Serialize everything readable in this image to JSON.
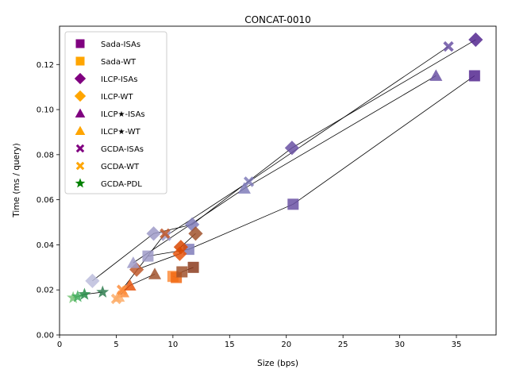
{
  "chart_data": {
    "type": "scatter",
    "title": "CONCAT-0010",
    "xlabel": "Size (bps)",
    "ylabel": "Time (ms / query)",
    "xlim": [
      0,
      38.5
    ],
    "ylim": [
      0,
      0.137
    ],
    "xticks": [
      "0",
      "5",
      "10",
      "15",
      "20",
      "25",
      "30",
      "35"
    ],
    "xtick_values": [
      0,
      5,
      10,
      15,
      20,
      25,
      30,
      35
    ],
    "yticks": [
      "0.00",
      "0.02",
      "0.04",
      "0.06",
      "0.08",
      "0.10",
      "0.12"
    ],
    "ytick_values": [
      0,
      0.02,
      0.04,
      0.06,
      0.08,
      0.1,
      0.12
    ],
    "legend_position": "upper-left",
    "colors": {
      "isa": "#800080",
      "wt": "#ffa500",
      "pdl": "#008000",
      "grid_frame": "#000000"
    },
    "legend": [
      {
        "label": "Sada-ISAs",
        "marker": "square",
        "color": "#800080"
      },
      {
        "label": "Sada-WT",
        "marker": "square",
        "color": "#ffa500"
      },
      {
        "label": "ILCP-ISAs",
        "marker": "diamond",
        "color": "#800080"
      },
      {
        "label": "ILCP-WT",
        "marker": "diamond",
        "color": "#ffa500"
      },
      {
        "label": "ILCP★-ISAs",
        "marker": "triangle",
        "color": "#800080"
      },
      {
        "label": "ILCP★-WT",
        "marker": "triangle",
        "color": "#ffa500"
      },
      {
        "label": "GCDA-ISAs",
        "marker": "x",
        "color": "#800080"
      },
      {
        "label": "GCDA-WT",
        "marker": "x",
        "color": "#ffa500"
      },
      {
        "label": "GCDA-PDL",
        "marker": "star",
        "color": "#008000"
      }
    ],
    "series": [
      {
        "name": "Sada-ISAs",
        "marker": "square",
        "line": true,
        "points": [
          {
            "x": 7.8,
            "y": 0.035,
            "color": "#9e9ac8"
          },
          {
            "x": 11.4,
            "y": 0.038,
            "color": "#807dba"
          },
          {
            "x": 20.6,
            "y": 0.058,
            "color": "#6a51a3"
          },
          {
            "x": 36.6,
            "y": 0.115,
            "color": "#54278f"
          }
        ]
      },
      {
        "name": "Sada-WT",
        "marker": "square",
        "line": true,
        "points": [
          {
            "x": 10.0,
            "y": 0.026,
            "color": "#fd8d3c"
          },
          {
            "x": 10.3,
            "y": 0.0255,
            "color": "#f16913"
          },
          {
            "x": 10.8,
            "y": 0.028,
            "color": "#a0522d"
          },
          {
            "x": 11.8,
            "y": 0.03,
            "color": "#8c3c1e"
          }
        ]
      },
      {
        "name": "ILCP-ISAs",
        "marker": "diamond",
        "line": true,
        "points": [
          {
            "x": 2.9,
            "y": 0.024,
            "color": "#bcbddc"
          },
          {
            "x": 8.3,
            "y": 0.045,
            "color": "#9e9ac8"
          },
          {
            "x": 11.7,
            "y": 0.049,
            "color": "#807dba"
          },
          {
            "x": 20.5,
            "y": 0.083,
            "color": "#6a51a3"
          },
          {
            "x": 36.7,
            "y": 0.131,
            "color": "#54278f"
          }
        ]
      },
      {
        "name": "ILCP-WT",
        "marker": "diamond",
        "line": true,
        "points": [
          {
            "x": 6.8,
            "y": 0.029,
            "color": "#c0582a"
          },
          {
            "x": 10.6,
            "y": 0.036,
            "color": "#e6550d"
          },
          {
            "x": 10.7,
            "y": 0.039,
            "color": "#d94801"
          },
          {
            "x": 12.0,
            "y": 0.045,
            "color": "#a0522d"
          }
        ]
      },
      {
        "name": "ILCP★-ISAs",
        "marker": "triangle",
        "line": true,
        "points": [
          {
            "x": 6.5,
            "y": 0.032,
            "color": "#9e9ac8"
          },
          {
            "x": 16.3,
            "y": 0.065,
            "color": "#807dba"
          },
          {
            "x": 33.2,
            "y": 0.115,
            "color": "#6a51a3"
          }
        ]
      },
      {
        "name": "ILCP★-WT",
        "marker": "triangle",
        "line": true,
        "points": [
          {
            "x": 5.2,
            "y": 0.017,
            "color": "#fdae6b"
          },
          {
            "x": 5.6,
            "y": 0.019,
            "color": "#fd8d3c"
          },
          {
            "x": 6.2,
            "y": 0.022,
            "color": "#e6550d"
          },
          {
            "x": 8.4,
            "y": 0.027,
            "color": "#a0522d"
          }
        ]
      },
      {
        "name": "GCDA-ISAs",
        "marker": "x",
        "line": true,
        "points": [
          {
            "x": 9.4,
            "y": 0.044,
            "color": "#9e9ac8"
          },
          {
            "x": 16.7,
            "y": 0.068,
            "color": "#807dba"
          },
          {
            "x": 34.3,
            "y": 0.128,
            "color": "#6a51a3"
          }
        ]
      },
      {
        "name": "GCDA-WT",
        "marker": "x",
        "line": true,
        "points": [
          {
            "x": 5.0,
            "y": 0.016,
            "color": "#fdae6b"
          },
          {
            "x": 5.5,
            "y": 0.02,
            "color": "#fd8d3c"
          },
          {
            "x": 9.3,
            "y": 0.045,
            "color": "#c0582a"
          }
        ]
      },
      {
        "name": "GCDA-PDL",
        "marker": "star",
        "line": true,
        "points": [
          {
            "x": 1.2,
            "y": 0.0165,
            "color": "#74c476"
          },
          {
            "x": 1.6,
            "y": 0.017,
            "color": "#41ab5d"
          },
          {
            "x": 2.2,
            "y": 0.018,
            "color": "#238b45"
          },
          {
            "x": 3.8,
            "y": 0.019,
            "color": "#2e7d4f"
          }
        ]
      }
    ]
  }
}
